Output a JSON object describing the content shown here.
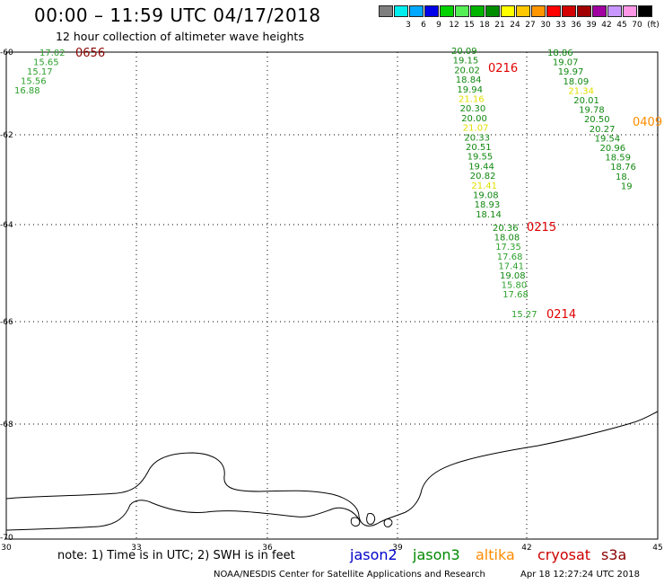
{
  "header": {
    "title": "00:00 – 11:59 UTC 04/17/2018",
    "subtitle": "12 hour collection of altimeter wave heights"
  },
  "legend": {
    "unit": "(ft)",
    "items": [
      {
        "color": "#7f7f7f",
        "label": ""
      },
      {
        "color": "#00eeee",
        "label": "3"
      },
      {
        "color": "#00a8ff",
        "label": "6"
      },
      {
        "color": "#0000e8",
        "label": "9"
      },
      {
        "color": "#00d200",
        "label": "12"
      },
      {
        "color": "#55ee55",
        "label": "15"
      },
      {
        "color": "#00b400",
        "label": "18"
      },
      {
        "color": "#008c00",
        "label": "21"
      },
      {
        "color": "#ffff00",
        "label": "24"
      },
      {
        "color": "#ffc800",
        "label": "27"
      },
      {
        "color": "#ff9600",
        "label": "30"
      },
      {
        "color": "#ff0000",
        "label": "33"
      },
      {
        "color": "#d20000",
        "label": "36"
      },
      {
        "color": "#a00000",
        "label": "39"
      },
      {
        "color": "#a000a0",
        "label": "42"
      },
      {
        "color": "#c896ff",
        "label": "45"
      },
      {
        "color": "#ff96e6",
        "label": "70"
      },
      {
        "color": "#000000",
        "label": ""
      }
    ]
  },
  "map": {
    "lat_labels": [
      "-60",
      "-62",
      "-64",
      "-66",
      "-68",
      "-70"
    ],
    "lon_labels": [
      "30",
      "33",
      "36",
      "39",
      "42",
      "45"
    ],
    "passes": [
      {
        "time": "0656",
        "time_color": "#8b0000",
        "points": [
          {
            "v": "17.02",
            "c": "#2ea02e"
          },
          {
            "v": "15.65",
            "c": "#2ea02e"
          },
          {
            "v": "15.17",
            "c": "#2ea02e"
          },
          {
            "v": "15.56",
            "c": "#2ea02e"
          },
          {
            "v": "16.88",
            "c": "#2ea02e"
          }
        ]
      },
      {
        "time": "0216",
        "time_color": "#e00000",
        "points": [
          {
            "v": "20.09",
            "c": "#118811"
          },
          {
            "v": "19.15",
            "c": "#118811"
          },
          {
            "v": "20.02",
            "c": "#118811"
          },
          {
            "v": "18.84",
            "c": "#118811"
          },
          {
            "v": "19.94",
            "c": "#118811"
          },
          {
            "v": "21.16",
            "c": "#e0e000"
          },
          {
            "v": "20.30",
            "c": "#118811"
          },
          {
            "v": "20.00",
            "c": "#118811"
          },
          {
            "v": "21.07",
            "c": "#e0e000"
          },
          {
            "v": "20.33",
            "c": "#118811"
          },
          {
            "v": "20.51",
            "c": "#118811"
          },
          {
            "v": "19.55",
            "c": "#118811"
          },
          {
            "v": "19.44",
            "c": "#118811"
          },
          {
            "v": "20.82",
            "c": "#118811"
          },
          {
            "v": "21.41",
            "c": "#e0e000"
          },
          {
            "v": "19.08",
            "c": "#118811"
          },
          {
            "v": "18.93",
            "c": "#118811"
          },
          {
            "v": "18.14",
            "c": "#118811"
          }
        ]
      },
      {
        "time": "0215",
        "time_color": "#e00000",
        "points": [
          {
            "v": "20.36",
            "c": "#118811"
          },
          {
            "v": "18.08",
            "c": "#118811"
          },
          {
            "v": "17.35",
            "c": "#2ea02e"
          },
          {
            "v": "17.68",
            "c": "#2ea02e"
          },
          {
            "v": "17.41",
            "c": "#2ea02e"
          },
          {
            "v": "19.08",
            "c": "#118811"
          },
          {
            "v": "15.80",
            "c": "#2ea02e"
          },
          {
            "v": "17.68",
            "c": "#2ea02e"
          }
        ]
      },
      {
        "time": "0214",
        "time_color": "#e00000",
        "points": [
          {
            "v": "15.27",
            "c": "#2ea02e"
          }
        ]
      },
      {
        "time": "0409",
        "time_color": "#ff8c00",
        "points": [
          {
            "v": "18.86",
            "c": "#118811"
          },
          {
            "v": "19.07",
            "c": "#118811"
          },
          {
            "v": "19.97",
            "c": "#118811"
          },
          {
            "v": "18.09",
            "c": "#118811"
          },
          {
            "v": "21.34",
            "c": "#e0e000"
          },
          {
            "v": "20.01",
            "c": "#118811"
          },
          {
            "v": "19.78",
            "c": "#118811"
          },
          {
            "v": "20.50",
            "c": "#118811"
          },
          {
            "v": "20.27",
            "c": "#118811"
          },
          {
            "v": "19.54",
            "c": "#118811"
          },
          {
            "v": "20.96",
            "c": "#118811"
          },
          {
            "v": "18.59",
            "c": "#118811"
          },
          {
            "v": "18.76",
            "c": "#118811"
          },
          {
            "v": "18.",
            "c": "#118811"
          },
          {
            "v": "19",
            "c": "#118811"
          }
        ]
      }
    ]
  },
  "footer": {
    "note": "note:  1) Time is in UTC;  2) SWH is in feet",
    "satellites": [
      {
        "name": "jason2",
        "color": "#0000cc"
      },
      {
        "name": "jason3",
        "color": "#008800"
      },
      {
        "name": "altika",
        "color": "#ff8c00"
      },
      {
        "name": "cryosat",
        "color": "#cc0000"
      },
      {
        "name": "s3a",
        "color": "#8b0000"
      }
    ],
    "credit": "NOAA/NESDIS Center for Satellite Applications and Research",
    "timestamp": "Apr 18 12:27:24 UTC 2018"
  }
}
